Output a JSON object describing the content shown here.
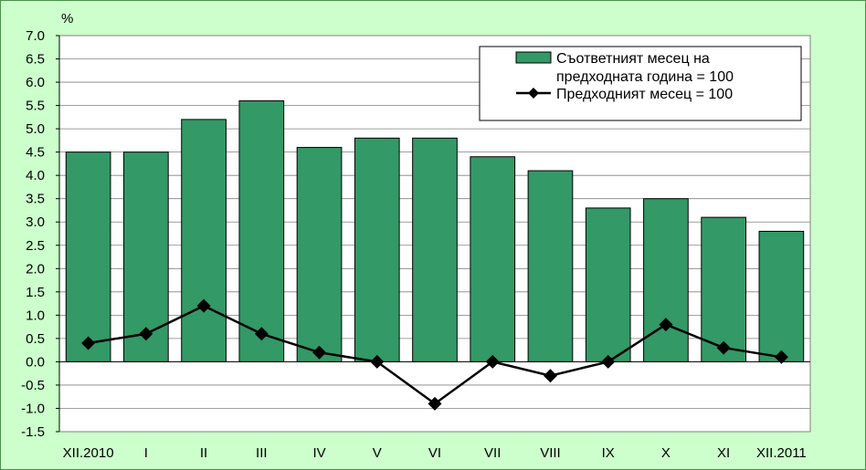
{
  "chart_data": {
    "type": "bar",
    "unit_label": "%",
    "categories": [
      "XII.2010",
      "I",
      "II",
      "III",
      "IV",
      "V",
      "VI",
      "VII",
      "VIII",
      "IX",
      "X",
      "XI",
      "XII.2011"
    ],
    "series": [
      {
        "name": "Съответният месец на предходната година = 100",
        "kind": "bar",
        "color": "#339966",
        "values": [
          4.5,
          4.5,
          5.2,
          5.6,
          4.6,
          4.8,
          4.8,
          4.4,
          4.1,
          3.3,
          3.5,
          3.1,
          2.8
        ]
      },
      {
        "name": "Предходният месец = 100",
        "kind": "line",
        "color": "#000000",
        "values": [
          0.4,
          0.6,
          1.2,
          0.6,
          0.2,
          0.0,
          -0.9,
          0.0,
          -0.3,
          0.0,
          0.8,
          0.3,
          0.1
        ]
      }
    ],
    "legend_labels": {
      "bar_line1": "Съответният месец на",
      "bar_line2": "предходната година = 100",
      "line": "Предходният месец = 100"
    },
    "ylim": [
      -1.5,
      7.0
    ],
    "yticks": [
      "7.0",
      "6.5",
      "6.0",
      "5.5",
      "5.0",
      "4.5",
      "4.0",
      "3.5",
      "3.0",
      "2.5",
      "2.0",
      "1.5",
      "1.0",
      "0.5",
      "0.0",
      "-0.5",
      "-1.0",
      "-1.5"
    ],
    "grid": true,
    "legend_position": "top-right",
    "colors": {
      "background": "#ccffcc",
      "plot_area": "#ffffff",
      "bar": "#339966",
      "line": "#000000"
    }
  }
}
